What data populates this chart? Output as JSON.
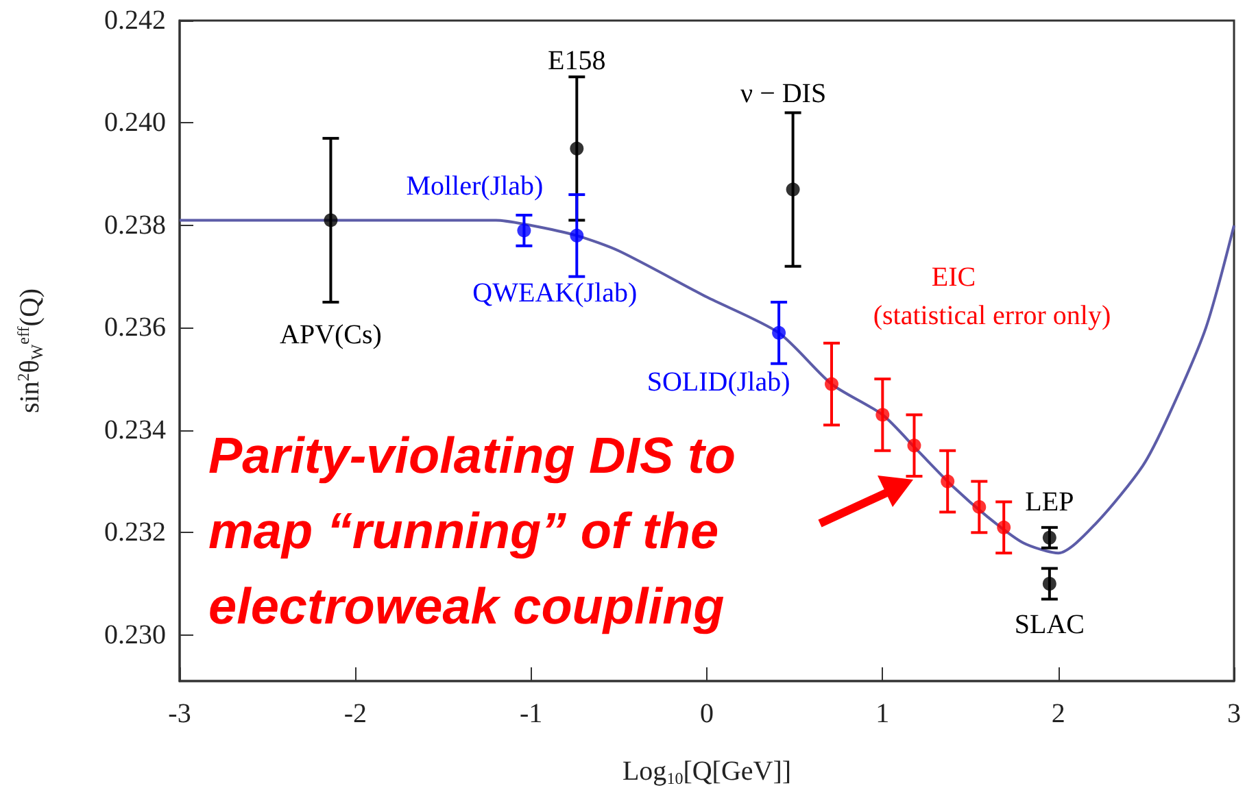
{
  "chart_data": {
    "type": "scatter",
    "xlabel": "Log$_{10}$[Q[GeV]]",
    "ylabel": "sin$^{2}$θ$_{W}$$^{eff}$(Q)",
    "xlim": [
      -3,
      3
    ],
    "xticks": [
      -3,
      -2,
      -1,
      0,
      1,
      2,
      3
    ],
    "ylim": [
      0.2291,
      0.242
    ],
    "yticks": [
      {
        "value": 0.23,
        "label": "0.230"
      },
      {
        "value": 0.232,
        "label": "0.232"
      },
      {
        "value": 0.234,
        "label": "0.234"
      },
      {
        "value": 0.236,
        "label": "0.236"
      },
      {
        "value": 0.238,
        "label": "0.238"
      },
      {
        "value": 0.24,
        "label": "0.240"
      },
      {
        "value": 0.242,
        "label": "0.242"
      }
    ],
    "grid": false,
    "marker": "circle",
    "series": [
      {
        "type": "line",
        "marker": "none",
        "color": "#5c5ca8",
        "x": [
          -3,
          -2,
          -1.2,
          -1.0,
          -0.74,
          -0.5,
          0,
          0.41,
          0.71,
          1.0,
          1.2,
          1.4,
          1.6,
          1.8,
          2.0,
          2.22,
          2.48,
          2.63,
          2.84,
          3.0
        ],
        "values": [
          0.2381,
          0.2381,
          0.2381,
          0.238,
          0.2378,
          0.2375,
          0.2366,
          0.2359,
          0.2349,
          0.2343,
          0.2336,
          0.2329,
          0.2323,
          0.2318,
          0.2316,
          0.2322,
          0.2333,
          0.2343,
          0.236,
          0.238
        ]
      },
      {
        "color": "#000000",
        "x": [
          -2.14,
          -0.74,
          0.49,
          1.95,
          1.95
        ],
        "values": [
          0.2381,
          0.2395,
          0.2387,
          0.2319,
          0.231
        ],
        "errors": [
          0.0016,
          0.0014,
          0.0015,
          0.0002,
          0.0003
        ]
      },
      {
        "color": "#0000ff",
        "x": [
          -1.04,
          -0.74,
          0.41
        ],
        "values": [
          0.2379,
          0.2378,
          0.2359
        ],
        "errors": [
          0.0003,
          0.0008,
          0.0006
        ]
      },
      {
        "color": "#ff0000",
        "x": [
          0.71,
          1.0,
          1.18,
          1.37,
          1.55,
          1.69
        ],
        "values": [
          0.2349,
          0.2343,
          0.2337,
          0.233,
          0.2325,
          0.2321
        ],
        "errors": [
          0.0008,
          0.0007,
          0.0006,
          0.0006,
          0.0005,
          0.0005
        ]
      }
    ],
    "annotations": [
      "APV(Cs)",
      {
        "text": "E158",
        "x": -0.74,
        "y": 0.2395
      },
      {
        "text": "Moller(Jlab)",
        "x": -1.04,
        "y": 0.2379
      },
      {
        "text": "QWEAK(Jlab)",
        "x": -0.74,
        "y": 0.2378
      },
      {
        "text": "ν − DIS",
        "x": 0.49,
        "y": 0.2387
      },
      {
        "text": "SOLID(Jlab)",
        "x": 0.41,
        "y": 0.2359
      },
      "EIC",
      "(statistical error only)",
      {
        "text": "LEP",
        "x": 1.95,
        "y": 0.2319
      },
      {
        "text": "SLAC",
        "x": 1.95,
        "y": 0.231
      },
      "Parity-violating DIS to map “running” of the electroweak coupling"
    ]
  }
}
